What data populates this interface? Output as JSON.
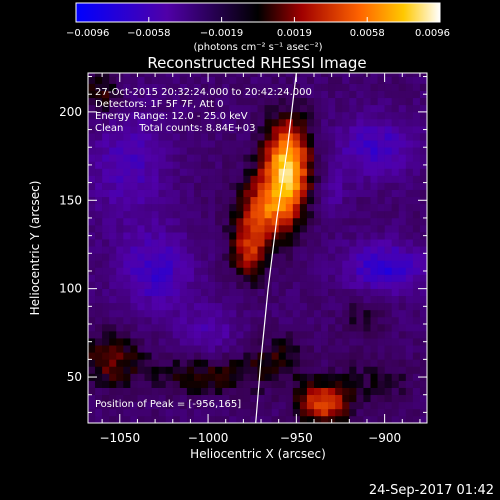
{
  "chart_data": {
    "type": "heatmap",
    "title": "Reconstructed RHESSI Image",
    "xlabel": "Heliocentric X (arcsec)",
    "ylabel": "Heliocentric Y (arcsec)",
    "xlim": [
      -1068,
      -876
    ],
    "ylim": [
      24,
      222
    ],
    "x_ticks": [
      -1050,
      -1000,
      -950,
      -900
    ],
    "x_tick_labels": [
      "−1050",
      "−1000",
      "−950",
      "−900"
    ],
    "y_ticks": [
      50,
      100,
      150,
      200
    ],
    "y_tick_labels": [
      "50",
      "100",
      "150",
      "200"
    ],
    "annotations": [
      "27-Oct-2015 20:32:24.000 to 20:42:24.000",
      "Detectors: 1F 5F 7F, Att 0",
      "Energy Range: 12.0 - 25.0 keV",
      "Clean     Total counts: 8.84E+03"
    ],
    "peak_label": "Position of Peak = [-956,165]",
    "peak": {
      "x": -956,
      "y": 165
    },
    "colorbar": {
      "min": -0.0096,
      "max": 0.0096,
      "tick_labels": [
        "−0.0096",
        "−0.0058",
        "−0.0019",
        "0.0019",
        "0.0058",
        "0.0096"
      ],
      "unit_label": "(photons cm⁻² s⁻¹ asec⁻²)"
    },
    "sources": [
      {
        "x": -955,
        "y": 170,
        "sx": 9,
        "sy": 18,
        "v": 0.01
      },
      {
        "x": -967,
        "y": 145,
        "sx": 11,
        "sy": 14,
        "v": 0.006
      },
      {
        "x": -977,
        "y": 122,
        "sx": 7,
        "sy": 12,
        "v": 0.0048
      },
      {
        "x": -930,
        "y": 155,
        "sx": 6,
        "sy": 8,
        "v": -0.002
      },
      {
        "x": -905,
        "y": 180,
        "sx": 16,
        "sy": 12,
        "v": -0.004
      },
      {
        "x": -1045,
        "y": 170,
        "sx": 16,
        "sy": 22,
        "v": -0.0032
      },
      {
        "x": -1030,
        "y": 110,
        "sx": 15,
        "sy": 16,
        "v": -0.004
      },
      {
        "x": -900,
        "y": 112,
        "sx": 16,
        "sy": 10,
        "v": -0.0048
      },
      {
        "x": -1000,
        "y": 75,
        "sx": 12,
        "sy": 10,
        "v": -0.0028
      },
      {
        "x": -1055,
        "y": 60,
        "sx": 12,
        "sy": 11,
        "v": 0.0035
      },
      {
        "x": -1000,
        "y": 52,
        "sx": 22,
        "sy": 9,
        "v": 0.0028
      },
      {
        "x": -935,
        "y": 35,
        "sx": 10,
        "sy": 8,
        "v": 0.0065
      },
      {
        "x": -960,
        "y": 60,
        "sx": 12,
        "sy": 10,
        "v": 0.0022
      },
      {
        "x": -905,
        "y": 48,
        "sx": 16,
        "sy": 10,
        "v": 0.0018
      },
      {
        "x": -912,
        "y": 85,
        "sx": 8,
        "sy": 7,
        "v": 0.002
      },
      {
        "x": -1060,
        "y": 210,
        "sx": 8,
        "sy": 9,
        "v": 0.003
      }
    ],
    "limb": [
      [
        -950,
        222
      ],
      [
        -955,
        180
      ],
      [
        -961,
        140
      ],
      [
        -966,
        100
      ],
      [
        -970,
        60
      ],
      [
        -973,
        24
      ]
    ]
  },
  "footer": {
    "timestamp": "24-Sep-2017 01:42"
  }
}
